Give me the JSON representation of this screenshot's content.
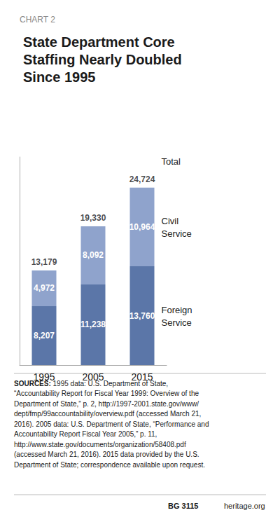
{
  "chart_data": {
    "type": "bar",
    "chart_label": "CHART 2",
    "title": "State Department Core\nStaffing Nearly Doubled\nSince 1995",
    "categories": [
      "1995",
      "2005",
      "2015"
    ],
    "series": [
      {
        "name": "Foreign\nService",
        "color": "#5b76a8",
        "values": [
          8207,
          11238,
          13760
        ],
        "value_labels": [
          "8,207",
          "11,238",
          "13,760"
        ]
      },
      {
        "name": "Civil\nService",
        "color": "#8fa3cc",
        "values": [
          4972,
          8092,
          10964
        ],
        "value_labels": [
          "4,972",
          "8,092",
          "10,964"
        ]
      }
    ],
    "totals": [
      13179,
      19330,
      24724
    ],
    "total_labels": [
      "13,179",
      "19,330",
      "24,724"
    ],
    "total_name": "Total",
    "stacked": true,
    "data_labels": true,
    "ylim": [
      0,
      29000
    ],
    "yticks": [],
    "tick_labels": "x",
    "grid": false,
    "sources_label": "SOURCES:",
    "sources": " 1995 data: U.S. Department of State,\n“Accountability Report for Fiscal Year 1999: Overview of the\nDepartment of State,” p. 2, http://1997-2001.state.gov/www/\ndept/fmp/99accountability/overview.pdf (accessed March 21,\n2016). 2005 data: U.S. Department of State, “Performance and\nAccountability Report Fiscal Year 2005,” p. 11,\nhttp://www.state.gov/documents/organization/58408.pdf\n(accessed March 21, 2016). 2015 data provided by the U.S.\nDepartment of State; correspondence available upon request.",
    "footer": [
      "BG 3115",
      "heritage.org"
    ]
  }
}
